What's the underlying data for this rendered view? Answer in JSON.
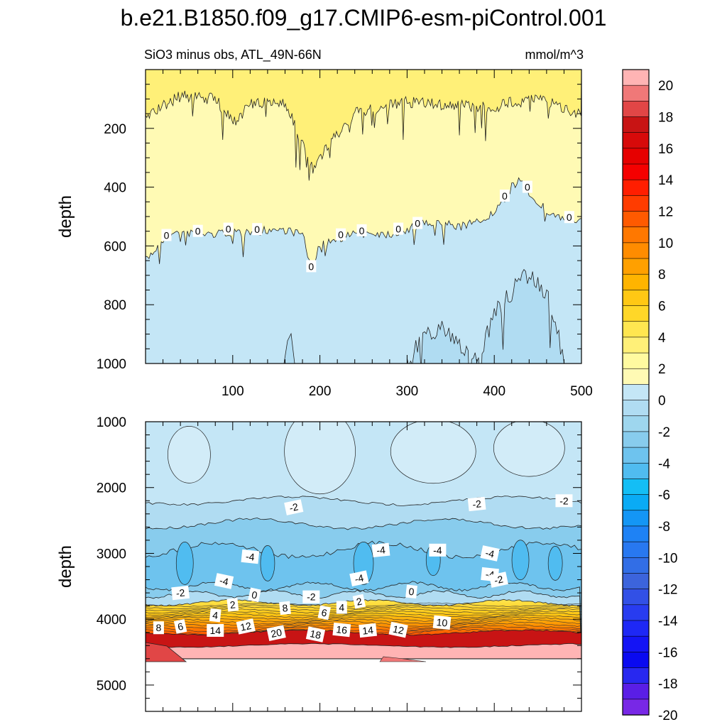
{
  "figure_title": "b.e21.B1850.f09_g17.CMIP6-esm-piControl.001",
  "chart_data": [
    {
      "type": "contour",
      "panel": "upper",
      "subtitle": "SiO3 minus obs, ATL_49N-66N",
      "units": "mmol/m^3",
      "ylabel": "depth",
      "xlabel": "",
      "xlim": [
        0,
        500
      ],
      "ylim": [
        1000,
        0
      ],
      "x_ticks": [
        100,
        200,
        300,
        400,
        500
      ],
      "y_ticks": [
        200,
        400,
        600,
        800,
        1000
      ],
      "zero_contour_depth": [
        [
          0,
          650
        ],
        [
          20,
          580
        ],
        [
          40,
          550
        ],
        [
          60,
          560
        ],
        [
          80,
          560
        ],
        [
          100,
          550
        ],
        [
          120,
          560
        ],
        [
          140,
          545
        ],
        [
          160,
          545
        ],
        [
          180,
          560
        ],
        [
          190,
          680
        ],
        [
          200,
          600
        ],
        [
          220,
          575
        ],
        [
          240,
          560
        ],
        [
          260,
          555
        ],
        [
          280,
          560
        ],
        [
          300,
          545
        ],
        [
          320,
          525
        ],
        [
          340,
          520
        ],
        [
          360,
          535
        ],
        [
          380,
          520
        ],
        [
          400,
          490
        ],
        [
          410,
          450
        ],
        [
          420,
          400
        ],
        [
          430,
          370
        ],
        [
          440,
          420
        ],
        [
          460,
          480
        ],
        [
          480,
          510
        ],
        [
          500,
          520
        ]
      ],
      "minus2_contour_depth": [
        [
          300,
          1000
        ],
        [
          320,
          900
        ],
        [
          340,
          880
        ],
        [
          360,
          930
        ],
        [
          380,
          1000
        ],
        [
          400,
          830
        ],
        [
          420,
          760
        ],
        [
          430,
          700
        ],
        [
          440,
          700
        ],
        [
          460,
          760
        ],
        [
          470,
          850
        ],
        [
          480,
          1000
        ]
      ],
      "surface_layer_depth": [
        [
          0,
          160
        ],
        [
          40,
          90
        ],
        [
          80,
          100
        ],
        [
          100,
          180
        ],
        [
          120,
          120
        ],
        [
          160,
          110
        ],
        [
          190,
          330
        ],
        [
          200,
          300
        ],
        [
          220,
          220
        ],
        [
          240,
          150
        ],
        [
          300,
          110
        ],
        [
          340,
          120
        ],
        [
          400,
          130
        ],
        [
          440,
          90
        ],
        [
          500,
          150
        ]
      ],
      "contour_labels": [
        "0",
        "0",
        "0",
        "0",
        "0",
        "0",
        "0",
        "0",
        "0",
        "0",
        "0",
        "0"
      ],
      "grid": false
    },
    {
      "type": "contour",
      "panel": "lower",
      "ylabel": "depth",
      "xlim": [
        0,
        500
      ],
      "ylim": [
        5400,
        1000
      ],
      "y_ticks": [
        1000,
        2000,
        3000,
        4000,
        5000
      ],
      "data_bottom_depth": 4600,
      "band_depths": {
        "minus1": [
          1000,
          2200
        ],
        "minus2": [
          2200,
          2550
        ],
        "minus3": [
          2550,
          2950
        ],
        "minus4": [
          2950,
          3500
        ],
        "minus2_upper_edge": [
          3500,
          3750
        ],
        "positive_gradient_start": 3750,
        "red_core": [
          4200,
          4400
        ],
        "pink": [
          4400,
          4600
        ]
      },
      "contour_labels": [
        "-2",
        "-2",
        "-2",
        "-4",
        "-4",
        "-4",
        "-4",
        "-4",
        "-4",
        "-4",
        "-2",
        "-2",
        "-2",
        "0",
        "0",
        "2",
        "2",
        "4",
        "4",
        "6",
        "6",
        "8",
        "8",
        "10",
        "12",
        "12",
        "14",
        "14",
        "16",
        "18",
        "20"
      ],
      "grid": false
    }
  ],
  "colorbar": {
    "levels": [
      "20",
      "18",
      "16",
      "14",
      "12",
      "10",
      "8",
      "6",
      "4",
      "2",
      "0",
      "-2",
      "-4",
      "-6",
      "-8",
      "-10",
      "-12",
      "-14",
      "-16",
      "-18",
      "-20"
    ],
    "colors": [
      "#ffb4b4",
      "#f07878",
      "#e14646",
      "#c81414",
      "#d70a0a",
      "#e60000",
      "#f50000",
      "#ff1e00",
      "#ff3c00",
      "#ff5a00",
      "#ff7800",
      "#ff8c00",
      "#ffa000",
      "#ffb400",
      "#ffc814",
      "#ffd728",
      "#ffe650",
      "#fff078",
      "#fffaa0",
      "#fffab4",
      "#c4e6f6",
      "#b0dcf2",
      "#9ed6ee",
      "#88cced",
      "#6ec3ee",
      "#50bcf0",
      "#14bef5",
      "#0aabf5",
      "#1496f5",
      "#1e82f5",
      "#2878f0",
      "#326ee6",
      "#3c64dc",
      "#3250e6",
      "#283cf0",
      "#1e28f5",
      "#1414f5",
      "#0a0af0",
      "#2828f0",
      "#5a1ee6",
      "#7828e6"
    ]
  },
  "colors": {
    "yellow_fill": "#fffab4",
    "yellow_surface": "#fff078",
    "blue1": "#c4e6f6",
    "blue2": "#b0dcf2",
    "blue3": "#88cced",
    "blue4": "#6ec3ee",
    "pink": "#ffb4b4",
    "red": "#c81414"
  }
}
